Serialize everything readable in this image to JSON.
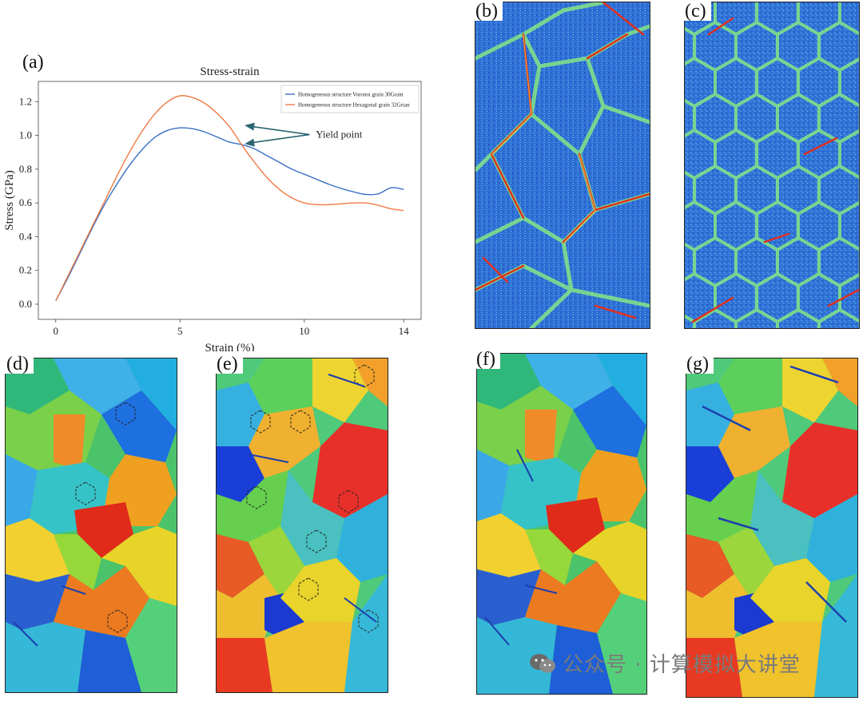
{
  "labels": {
    "a": "(a)",
    "b": "(b)",
    "c": "(c)",
    "d": "(d)",
    "e": "(e)",
    "f": "(f)",
    "g": "(g)"
  },
  "annotation": "Yield point",
  "watermark": "公众号 · 计算模拟大讲堂",
  "colors": {
    "series1": "#3a6fc4",
    "series2": "#ee7b45",
    "arrow": "#2a6470"
  },
  "chart_data": {
    "type": "line",
    "title": "Stress-strain",
    "xlabel": "Strain (%)",
    "ylabel": "Stress (GPa)",
    "xlim": [
      -0.7,
      14.7
    ],
    "ylim": [
      -0.09,
      1.32
    ],
    "xticks": [
      0,
      5,
      10,
      14
    ],
    "yticks": [
      0.0,
      0.2,
      0.4,
      0.6,
      0.8,
      1.0,
      1.2
    ],
    "legend_position": "top-right",
    "series": [
      {
        "name": "Homogeneous structure Voronoi grain 30Grain",
        "x": [
          0,
          0.5,
          1,
          1.5,
          2,
          2.5,
          3,
          3.5,
          4,
          4.5,
          5,
          5.5,
          6,
          6.5,
          7,
          7.5,
          8,
          8.5,
          9,
          9.5,
          10,
          10.5,
          11,
          11.5,
          12,
          12.5,
          13,
          13.5,
          14
        ],
        "y": [
          0.02,
          0.16,
          0.31,
          0.46,
          0.6,
          0.72,
          0.83,
          0.92,
          0.99,
          1.03,
          1.045,
          1.04,
          1.02,
          0.99,
          0.96,
          0.945,
          0.92,
          0.88,
          0.84,
          0.8,
          0.77,
          0.74,
          0.71,
          0.685,
          0.665,
          0.65,
          0.655,
          0.69,
          0.68
        ]
      },
      {
        "name": "Homogeneous structure Hexagonal grain 32Grian",
        "x": [
          0,
          0.5,
          1,
          1.5,
          2,
          2.5,
          3,
          3.5,
          4,
          4.5,
          5,
          5.5,
          6,
          6.5,
          7,
          7.5,
          8,
          8.5,
          9,
          9.5,
          10,
          10.5,
          11,
          11.5,
          12,
          12.5,
          13,
          13.5,
          14
        ],
        "y": [
          0.02,
          0.17,
          0.32,
          0.47,
          0.62,
          0.77,
          0.91,
          1.03,
          1.13,
          1.2,
          1.235,
          1.225,
          1.19,
          1.13,
          1.05,
          0.94,
          0.84,
          0.75,
          0.68,
          0.63,
          0.6,
          0.59,
          0.59,
          0.595,
          0.6,
          0.6,
          0.585,
          0.565,
          0.555
        ]
      }
    ]
  }
}
